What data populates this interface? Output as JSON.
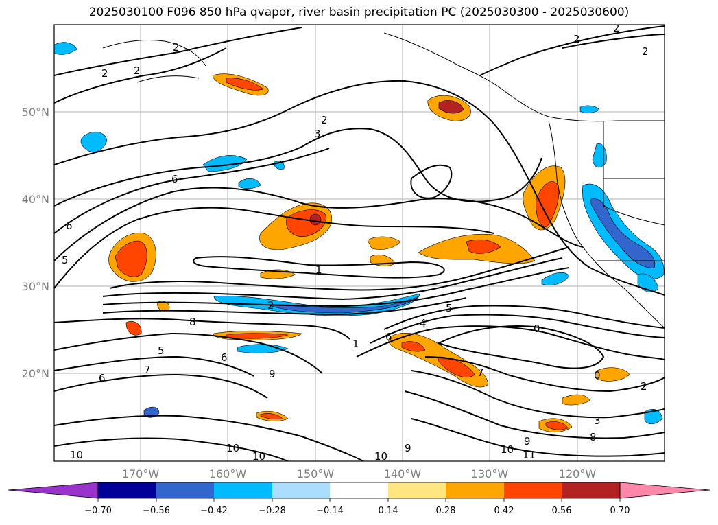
{
  "title": "2025030100 F096 850 hPa qvapor, river basin precipitation PC (2025030300 - 2025030600)",
  "latitude_labels": [
    "50°N",
    "40°N",
    "30°N",
    "20°N"
  ],
  "longitude_labels": [
    "170°W",
    "160°W",
    "150°W",
    "140°W",
    "130°W",
    "120°W"
  ],
  "contour_labels": [
    "2",
    "2",
    "2",
    "2",
    "2",
    "2",
    "2",
    "3",
    "6",
    "6",
    "5",
    "1",
    "2",
    "8",
    "5",
    "7",
    "6",
    "9",
    "6",
    "1",
    "6",
    "4",
    "5",
    "0",
    "0",
    "7",
    "2",
    "3",
    "8",
    "9",
    "11",
    "10",
    "10",
    "10",
    "10",
    "10",
    "9"
  ],
  "colorbar": {
    "tick_labels": [
      "−0.70",
      "−0.56",
      "−0.42",
      "−0.28",
      "−0.14",
      "0.14",
      "0.28",
      "0.42",
      "0.56",
      "0.70"
    ],
    "colors": [
      "#9933cc",
      "#000099",
      "#3366cc",
      "#00bbff",
      "#aaddff",
      "#ffffff",
      "#ffe680",
      "#ffa500",
      "#ff4500",
      "#b22222",
      "#ff88aa"
    ]
  }
}
